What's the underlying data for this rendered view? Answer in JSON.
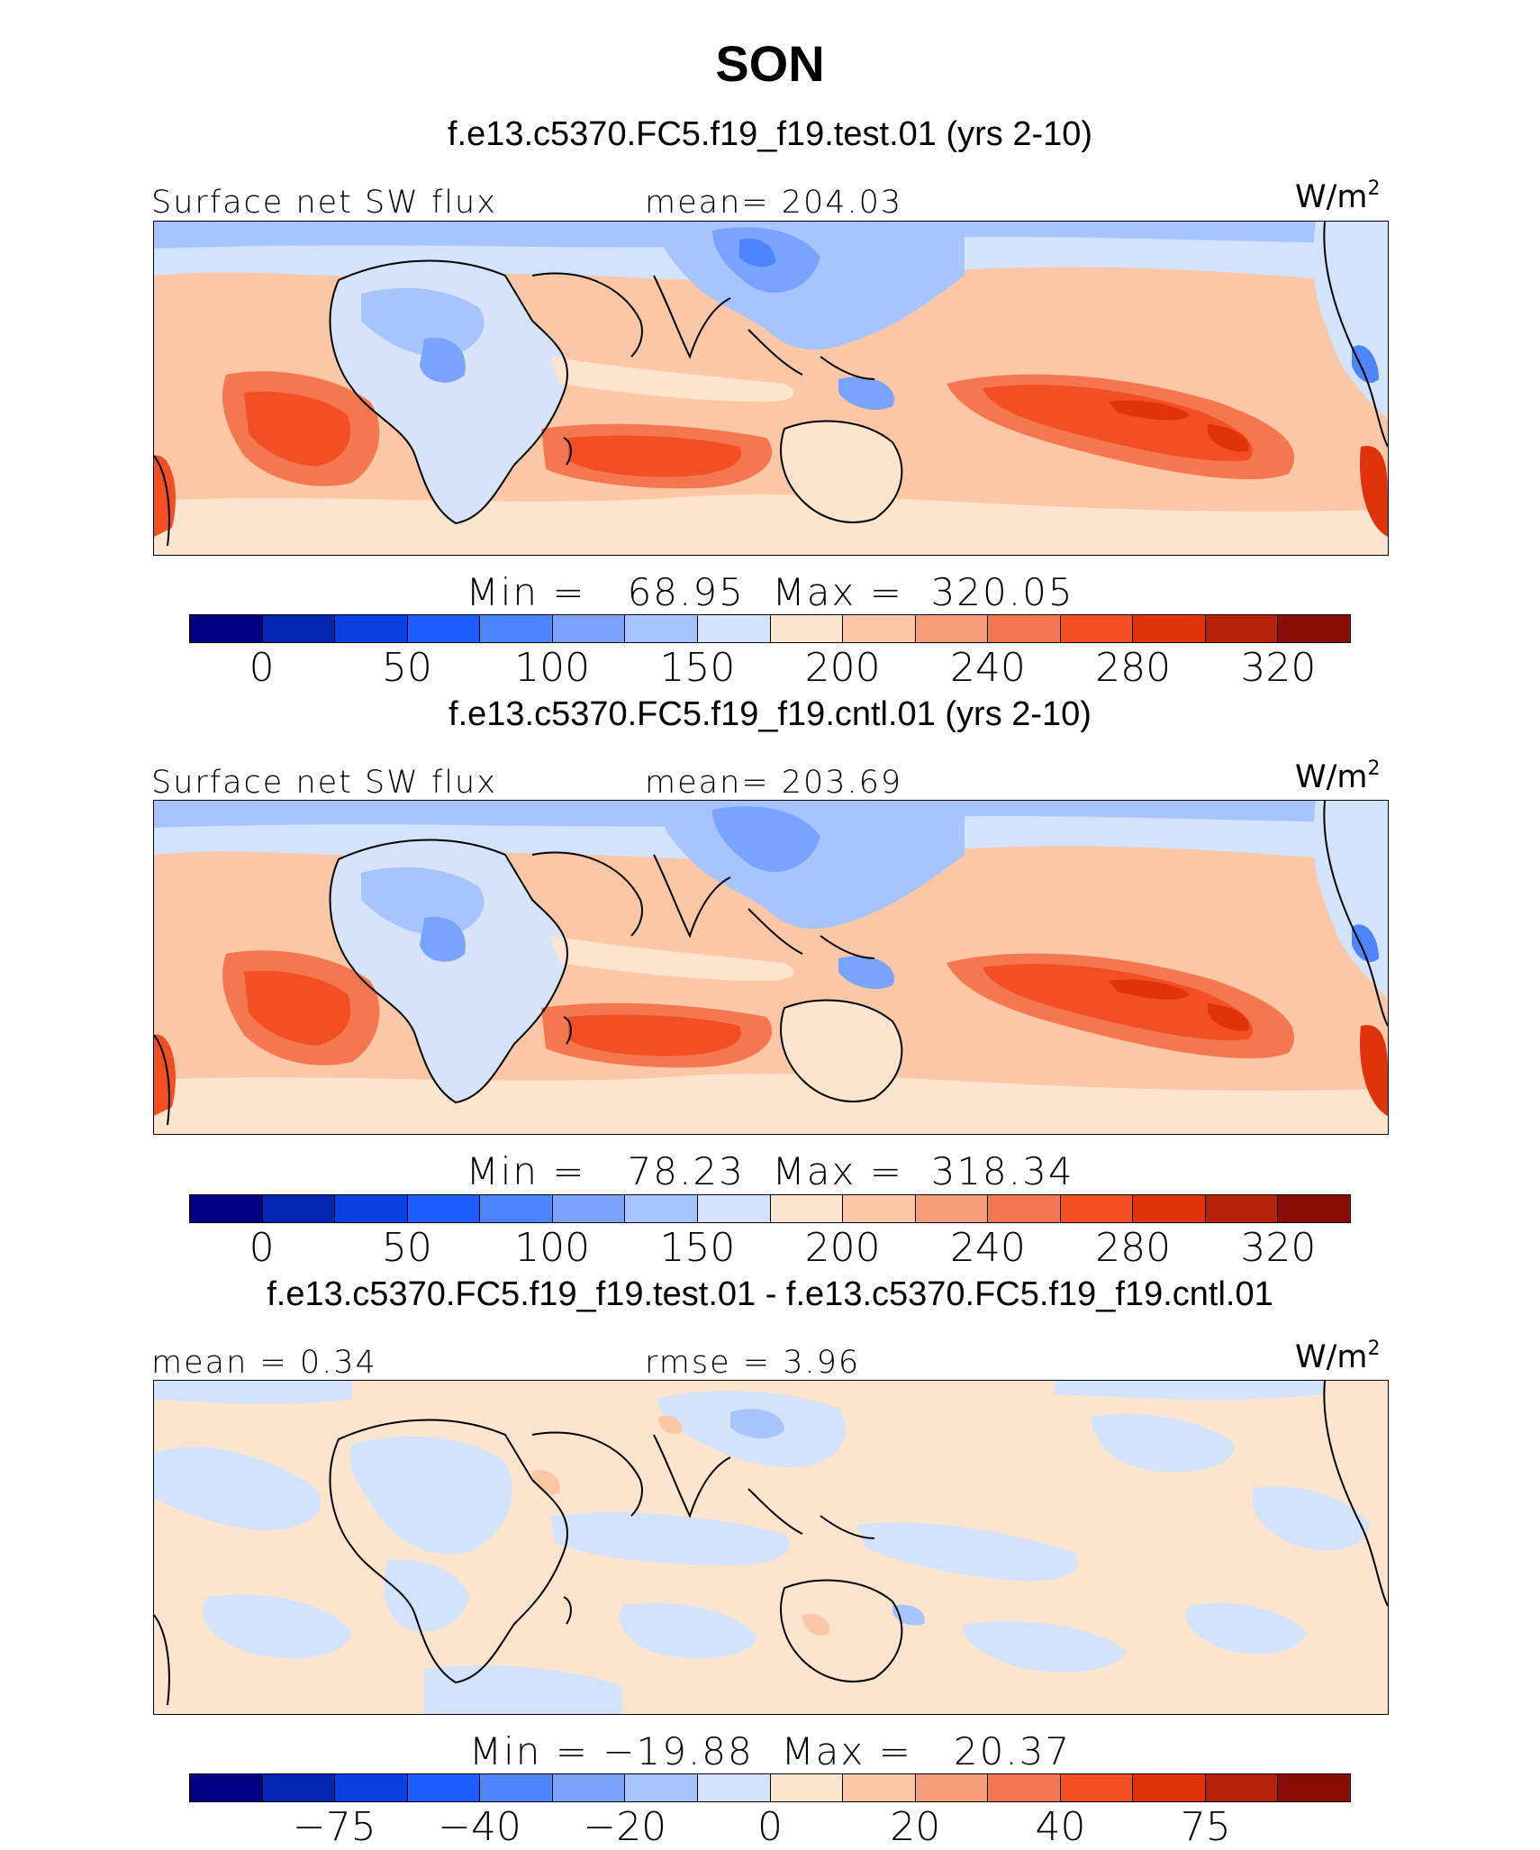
{
  "title": "SON",
  "units_base": "W/m",
  "units_sup": "2",
  "colors": [
    "#000080",
    "#0325b0",
    "#0a3fe0",
    "#1f5cff",
    "#4f84ff",
    "#7aa3ff",
    "#a8c4ff",
    "#d3e3fc",
    "#fde4cf",
    "#fbc7a7",
    "#f79e7a",
    "#f47750",
    "#f24f24",
    "#e0330c",
    "#b5220a",
    "#8a0d05"
  ],
  "land_color": "#d6e3fa",
  "panels": [
    {
      "case_title": "f.e13.c5370.FC5.f19_f19.test.01 (yrs 2-10)",
      "left_label": "Surface net SW flux",
      "center_label": "mean= 204.03",
      "minmax": "Min =   68.95  Max =  320.05",
      "ticks": [
        "0",
        "50",
        "100",
        "150",
        "200",
        "240",
        "280",
        "320"
      ]
    },
    {
      "case_title": "f.e13.c5370.FC5.f19_f19.cntl.01 (yrs 2-10)",
      "left_label": "Surface net SW flux",
      "center_label": "mean= 203.69",
      "minmax": "Min =   78.23  Max =  318.34",
      "ticks": [
        "0",
        "50",
        "100",
        "150",
        "200",
        "240",
        "280",
        "320"
      ]
    },
    {
      "case_title": "f.e13.c5370.FC5.f19_f19.test.01 - f.e13.c5370.FC5.f19_f19.cntl.01",
      "left_label": "mean =    0.34",
      "center_label": "rmse =    3.96",
      "minmax": "Min = −19.88  Max =   20.37",
      "ticks": [
        "−75",
        "−40",
        "−20",
        "0",
        "20",
        "40",
        "75"
      ]
    }
  ]
}
